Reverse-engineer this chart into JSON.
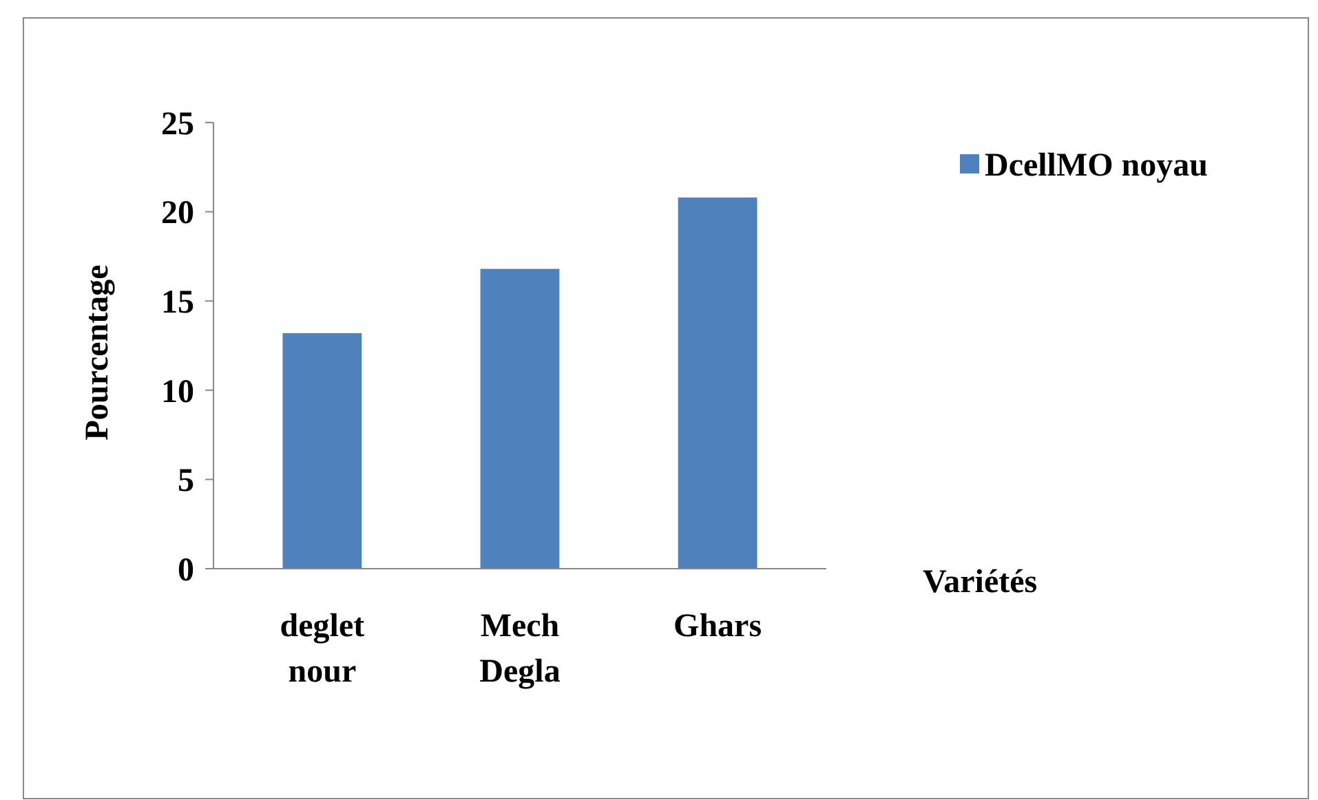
{
  "chart_data": {
    "type": "bar",
    "xlabel": "Variétés",
    "ylabel": "Pourcentage",
    "categories": [
      "deglet nour",
      "Mech Degla",
      "Ghars"
    ],
    "series": [
      {
        "name": "DcellMO noyau",
        "color": "#4f81bd",
        "values": [
          13.2,
          16.8,
          20.8
        ]
      }
    ],
    "ylim": [
      0,
      25
    ],
    "yticks": [
      0,
      5,
      10,
      15,
      20,
      25
    ],
    "legend": "top right"
  }
}
